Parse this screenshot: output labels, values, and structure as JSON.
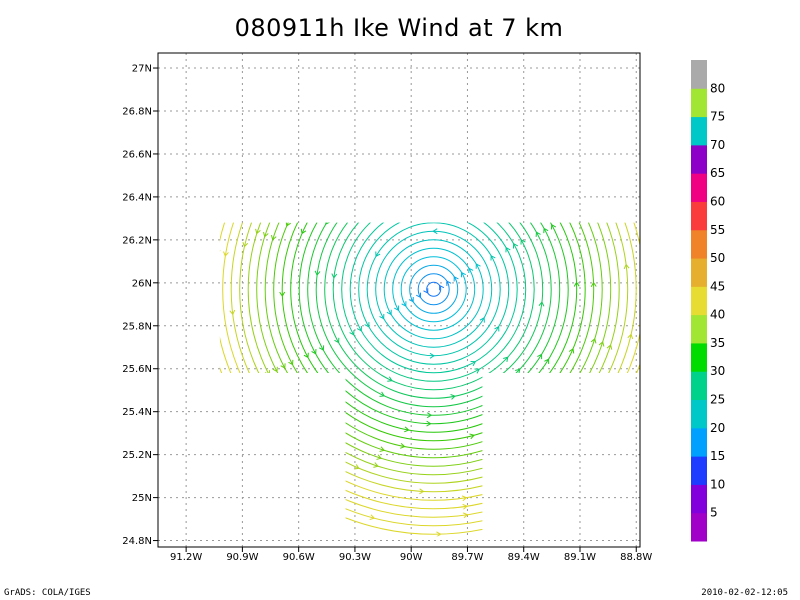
{
  "chart_data": {
    "type": "streamlines",
    "title": "080911h Ike Wind at 7 km",
    "xlabel": "",
    "ylabel": "",
    "x_ticks": [
      "91.2W",
      "90.9W",
      "90.6W",
      "90.3W",
      "90W",
      "89.7W",
      "89.4W",
      "89.1W",
      "88.8W"
    ],
    "x_tick_values": [
      -91.2,
      -90.9,
      -90.6,
      -90.3,
      -90.0,
      -89.7,
      -89.4,
      -89.1,
      -88.8
    ],
    "y_ticks": [
      "24.8N",
      "25N",
      "25.2N",
      "25.4N",
      "25.6N",
      "25.8N",
      "26N",
      "26.2N",
      "26.4N",
      "26.6N",
      "26.8N",
      "27N"
    ],
    "y_tick_values": [
      24.8,
      25.0,
      25.2,
      25.4,
      25.6,
      25.8,
      26.0,
      26.2,
      26.4,
      26.6,
      26.8,
      27.0
    ],
    "xlim": [
      -91.35,
      -88.78
    ],
    "ylim": [
      24.77,
      27.07
    ],
    "grid": true,
    "vortex_center": {
      "lon": -89.88,
      "lat": 25.97
    },
    "data_regions": [
      {
        "lon": [
          -91.02,
          -88.78
        ],
        "lat": [
          25.58,
          26.28
        ]
      },
      {
        "lon": [
          -90.35,
          -89.62
        ],
        "lat": [
          24.82,
          25.58
        ]
      }
    ],
    "colorbar": {
      "labels": [
        "5",
        "10",
        "15",
        "20",
        "25",
        "30",
        "35",
        "40",
        "45",
        "50",
        "55",
        "60",
        "65",
        "70",
        "75",
        "80"
      ],
      "colors": [
        "#a000c8",
        "#8200dc",
        "#1e3cff",
        "#00a0ff",
        "#00c8c8",
        "#00d28c",
        "#00dc00",
        "#a0e632",
        "#e6dc32",
        "#e6af2d",
        "#f08228",
        "#fa3c3c",
        "#f00082",
        "#8c00c8",
        "#00c8c8",
        "#a0e632",
        "#aaaaaa"
      ]
    }
  },
  "footer": {
    "left": "GrADS: COLA/IGES",
    "right": "2010-02-02-12:05"
  }
}
